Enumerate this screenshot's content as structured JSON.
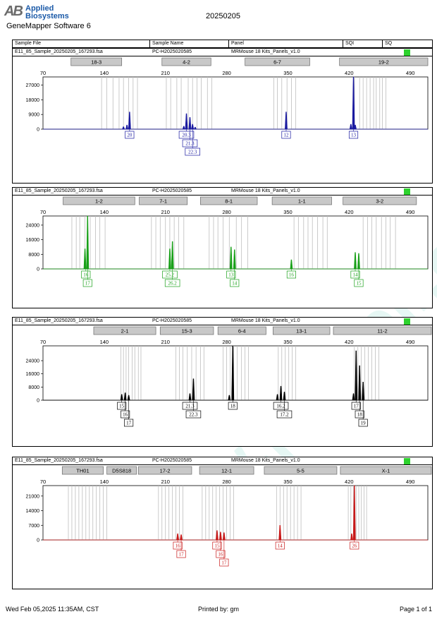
{
  "header": {
    "logo_mark": "AB",
    "logo_line1": "Applied",
    "logo_line2": "Biosystems",
    "software": "GeneMapper Software 6",
    "document_date": "20250205"
  },
  "columns": {
    "sample_file": "Sample File",
    "sample_name": "Sample Name",
    "panel": "Panel",
    "sqi": "SQI",
    "sq": "SQ"
  },
  "footer": {
    "timestamp": "Wed Feb 05,2025 11:35AM, CST",
    "printed_by": "Printed by: gm",
    "page": "Page 1 of 1"
  },
  "watermark": "www.procell.com.cn",
  "colors": {
    "blue": "#1a1aa0",
    "green": "#19a019",
    "black": "#000000",
    "red": "#c81818",
    "sq_status": "#2dd22d"
  },
  "chart_data": [
    {
      "type": "electropherogram",
      "sample_file": "E11_85_Sample_20250205_167293.fsa",
      "sample_name": "PC-H2025020585",
      "panel": "MRMouse 18 Kits_Panels_v1.0",
      "dye": "blue",
      "xlim": [
        70,
        510
      ],
      "xticks": [
        70,
        140,
        210,
        280,
        350,
        420,
        490
      ],
      "ylim": [
        0,
        32000
      ],
      "yticks": [
        0,
        9000,
        18000,
        27000
      ],
      "markers": [
        {
          "name": "18-3",
          "start": 102,
          "end": 160
        },
        {
          "name": "4-2",
          "start": 206,
          "end": 262
        },
        {
          "name": "6-7",
          "start": 301,
          "end": 375
        },
        {
          "name": "19-2",
          "start": 409,
          "end": 510
        }
      ],
      "bins": [
        137,
        143,
        150,
        157,
        162,
        168,
        173,
        178,
        211,
        216,
        223,
        228,
        236,
        241,
        246,
        251,
        258,
        263,
        334,
        338,
        343,
        349,
        354,
        359,
        426,
        432,
        436,
        440,
        444,
        448,
        451,
        455,
        458,
        462
      ],
      "peaks": [
        {
          "x": 162,
          "y": 1500
        },
        {
          "x": 166,
          "y": 2500
        },
        {
          "x": 169,
          "y": 10500
        },
        {
          "x": 231,
          "y": 1800
        },
        {
          "x": 234,
          "y": 9500
        },
        {
          "x": 238,
          "y": 7200
        },
        {
          "x": 241,
          "y": 3000
        },
        {
          "x": 244,
          "y": 1200
        },
        {
          "x": 348,
          "y": 10500
        },
        {
          "x": 422,
          "y": 3000
        },
        {
          "x": 425,
          "y": 32000
        },
        {
          "x": 427,
          "y": 2500
        }
      ],
      "calls": [
        {
          "label": "20",
          "x": 169,
          "row": 0
        },
        {
          "label": "20.3",
          "x": 234,
          "row": 0
        },
        {
          "label": "21.3",
          "x": 238,
          "row": 1
        },
        {
          "label": "22.3",
          "x": 241,
          "row": 2
        },
        {
          "label": "12",
          "x": 348,
          "row": 0
        },
        {
          "label": "13",
          "x": 425,
          "row": 0
        }
      ]
    },
    {
      "type": "electropherogram",
      "sample_file": "E11_85_Sample_20250205_167293.fsa",
      "sample_name": "PC-H2025020585",
      "panel": "MRMouse 18 Kits_Panels_v1.0",
      "dye": "green",
      "xlim": [
        70,
        510
      ],
      "xticks": [
        70,
        140,
        210,
        280,
        350,
        420,
        490
      ],
      "ylim": [
        0,
        29000
      ],
      "yticks": [
        0,
        8000,
        16000,
        24000
      ],
      "markers": [
        {
          "name": "1-2",
          "start": 93,
          "end": 175
        },
        {
          "name": "7-1",
          "start": 180,
          "end": 235
        },
        {
          "name": "8-1",
          "start": 250,
          "end": 315
        },
        {
          "name": "1-1",
          "start": 332,
          "end": 400
        },
        {
          "name": "3-2",
          "start": 413,
          "end": 497
        }
      ],
      "bins": [
        103,
        108,
        112,
        118,
        124,
        130,
        135,
        141,
        194,
        199,
        204,
        210,
        215,
        220,
        225,
        231,
        260,
        265,
        270,
        276,
        283,
        291,
        297,
        304,
        357,
        362,
        368,
        373,
        378,
        384,
        390,
        395,
        436,
        441,
        446,
        451,
        457,
        462,
        467,
        473
      ],
      "peaks": [
        {
          "x": 118,
          "y": 11000
        },
        {
          "x": 121,
          "y": 29000
        },
        {
          "x": 215,
          "y": 11000
        },
        {
          "x": 218,
          "y": 15000
        },
        {
          "x": 285,
          "y": 12000
        },
        {
          "x": 289,
          "y": 10500
        },
        {
          "x": 354,
          "y": 5000
        },
        {
          "x": 427,
          "y": 9000
        },
        {
          "x": 431,
          "y": 8500
        }
      ],
      "calls": [
        {
          "label": "16",
          "x": 119,
          "row": 0
        },
        {
          "label": "17",
          "x": 121,
          "row": 1
        },
        {
          "label": "25.2",
          "x": 215,
          "row": 0
        },
        {
          "label": "26.2",
          "x": 218,
          "row": 1
        },
        {
          "label": "13",
          "x": 285,
          "row": 0
        },
        {
          "label": "14",
          "x": 289,
          "row": 1
        },
        {
          "label": "16",
          "x": 354,
          "row": 0
        },
        {
          "label": "14",
          "x": 427,
          "row": 0
        },
        {
          "label": "15",
          "x": 431,
          "row": 1
        }
      ]
    },
    {
      "type": "electropherogram",
      "sample_file": "E11_85_Sample_20250205_167293.fsa",
      "sample_name": "PC-H2025020585",
      "panel": "MRMouse 18 Kits_Panels_v1.0",
      "dye": "black",
      "xlim": [
        70,
        510
      ],
      "xticks": [
        70,
        140,
        210,
        280,
        350,
        420,
        490
      ],
      "ylim": [
        0,
        33000
      ],
      "yticks": [
        0,
        8000,
        16000,
        24000
      ],
      "markers": [
        {
          "name": "2-1",
          "start": 128,
          "end": 199
        },
        {
          "name": "15-3",
          "start": 204,
          "end": 265
        },
        {
          "name": "6-4",
          "start": 270,
          "end": 325
        },
        {
          "name": "13-1",
          "start": 333,
          "end": 398
        },
        {
          "name": "11-2",
          "start": 402,
          "end": 514
        }
      ],
      "bins": [
        159,
        162,
        165,
        168,
        172,
        175,
        179,
        182,
        222,
        226,
        230,
        235,
        240,
        245,
        250,
        254,
        276,
        280,
        284,
        288,
        292,
        297,
        301,
        305,
        339,
        343,
        347,
        351,
        355,
        359,
        426,
        430,
        434,
        438,
        442,
        446,
        450,
        454
      ],
      "peaks": [
        {
          "x": 160,
          "y": 3500
        },
        {
          "x": 164,
          "y": 4500
        },
        {
          "x": 168,
          "y": 3000
        },
        {
          "x": 238,
          "y": 4000
        },
        {
          "x": 242,
          "y": 13000
        },
        {
          "x": 283,
          "y": 3000
        },
        {
          "x": 287,
          "y": 33000
        },
        {
          "x": 338,
          "y": 3500
        },
        {
          "x": 342,
          "y": 8500
        },
        {
          "x": 346,
          "y": 5000
        },
        {
          "x": 425,
          "y": 4000
        },
        {
          "x": 428,
          "y": 30000
        },
        {
          "x": 432,
          "y": 21000
        },
        {
          "x": 436,
          "y": 11000
        }
      ],
      "calls": [
        {
          "label": "15",
          "x": 160,
          "row": 0
        },
        {
          "label": "16",
          "x": 164,
          "row": 1
        },
        {
          "label": "17",
          "x": 168,
          "row": 2
        },
        {
          "label": "21.3",
          "x": 238,
          "row": 0
        },
        {
          "label": "22.3",
          "x": 242,
          "row": 1
        },
        {
          "label": "18",
          "x": 287,
          "row": 0
        },
        {
          "label": "16.2",
          "x": 342,
          "row": 0
        },
        {
          "label": "17.2",
          "x": 346,
          "row": 1
        },
        {
          "label": "17",
          "x": 428,
          "row": 0
        },
        {
          "label": "18",
          "x": 432,
          "row": 1
        },
        {
          "label": "19",
          "x": 436,
          "row": 2
        }
      ]
    },
    {
      "type": "electropherogram",
      "sample_file": "E11_85_Sample_20250205_167293.fsa",
      "sample_name": "PC-H2025020585",
      "panel": "MRMouse 18 Kits_Panels_v1.0",
      "dye": "red",
      "xlim": [
        70,
        510
      ],
      "xticks": [
        70,
        140,
        210,
        280,
        350,
        420,
        490
      ],
      "ylim": [
        0,
        26000
      ],
      "yticks": [
        0,
        7000,
        14000,
        21000
      ],
      "markers": [
        {
          "name": "TH01",
          "start": 92,
          "end": 139
        },
        {
          "name": "D5S818",
          "start": 143,
          "end": 177
        },
        {
          "name": "17-2",
          "start": 179,
          "end": 240
        },
        {
          "name": "12-1",
          "start": 249,
          "end": 311
        },
        {
          "name": "5-5",
          "start": 323,
          "end": 406
        },
        {
          "name": "X-1",
          "start": 410,
          "end": 514
        }
      ],
      "bins": [
        99,
        103,
        107,
        111,
        115,
        119,
        123,
        127,
        131,
        135,
        139,
        143,
        202,
        206,
        210,
        214,
        218,
        222,
        226,
        230,
        252,
        256,
        260,
        264,
        268,
        272,
        276,
        280,
        284,
        288,
        337,
        341,
        345,
        349,
        353,
        357,
        361,
        365,
        419,
        422,
        425,
        428,
        431,
        434,
        437,
        440
      ],
      "peaks": [
        {
          "x": 224,
          "y": 3000
        },
        {
          "x": 228,
          "y": 2500
        },
        {
          "x": 269,
          "y": 4500
        },
        {
          "x": 273,
          "y": 3800
        },
        {
          "x": 277,
          "y": 3500
        },
        {
          "x": 341,
          "y": 7000
        },
        {
          "x": 423,
          "y": 3000
        },
        {
          "x": 426,
          "y": 26000
        }
      ],
      "calls": [
        {
          "label": "16",
          "x": 224,
          "row": 0
        },
        {
          "label": "17",
          "x": 228,
          "row": 1
        },
        {
          "label": "15",
          "x": 269,
          "row": 0
        },
        {
          "label": "16",
          "x": 273,
          "row": 1
        },
        {
          "label": "17",
          "x": 277,
          "row": 2
        },
        {
          "label": "14",
          "x": 341,
          "row": 0
        },
        {
          "label": "26",
          "x": 426,
          "row": 0
        }
      ]
    }
  ]
}
